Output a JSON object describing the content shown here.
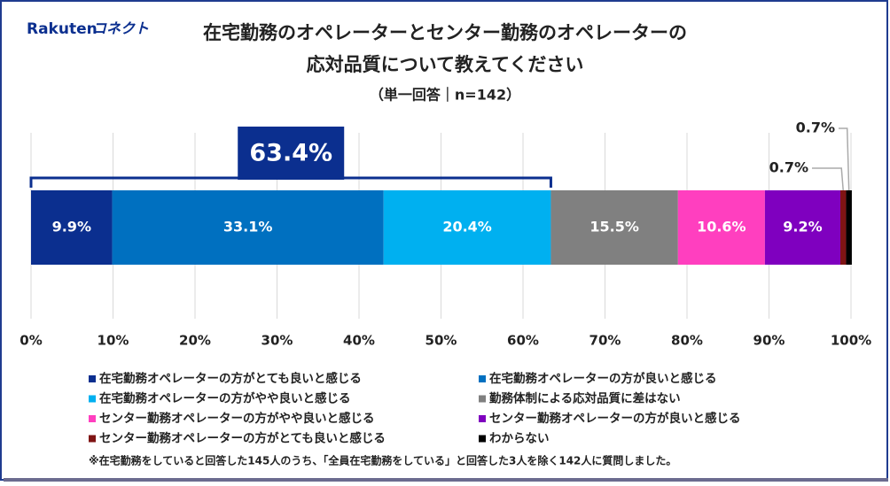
{
  "logo": {
    "brand": "Rakuten",
    "product": "コネクト"
  },
  "chart_data": {
    "type": "bar",
    "orientation": "horizontal",
    "stacked": true,
    "title": [
      "在宅勤務のオペレーターとセンター勤務のオペレーターの",
      "応対品質について教えてください"
    ],
    "subtitle": "（単一回答｜n=142）",
    "xlim": [
      0,
      100
    ],
    "xticks": [
      {
        "value": 0,
        "label": "0%"
      },
      {
        "value": 10,
        "label": "10%"
      },
      {
        "value": 20,
        "label": "20%"
      },
      {
        "value": 30,
        "label": "30%"
      },
      {
        "value": 40,
        "label": "40%"
      },
      {
        "value": 50,
        "label": "50%"
      },
      {
        "value": 60,
        "label": "60%"
      },
      {
        "value": 70,
        "label": "70%"
      },
      {
        "value": 80,
        "label": "80%"
      },
      {
        "value": 90,
        "label": "90%"
      },
      {
        "value": 100,
        "label": "100%"
      }
    ],
    "grid": true,
    "series": [
      {
        "name": "在宅勤務オペレーターの方がとても良いと感じる",
        "color": "#0b2f8f",
        "values": [
          9.9
        ],
        "value_labels": [
          "9.9%"
        ]
      },
      {
        "name": "在宅勤務オペレーターの方が良いと感じる",
        "color": "#0070c0",
        "values": [
          33.1
        ],
        "value_labels": [
          "33.1%"
        ]
      },
      {
        "name": "在宅勤務オペレーターの方がやや良いと感じる",
        "color": "#00b0f0",
        "values": [
          20.4
        ],
        "value_labels": [
          "20.4%"
        ]
      },
      {
        "name": "勤務体制による応対品質に差はない",
        "color": "#808080",
        "values": [
          15.5
        ],
        "value_labels": [
          "15.5%"
        ]
      },
      {
        "name": "センター勤務オペレーターの方がやや良いと感じる",
        "color": "#ff3fbf",
        "values": [
          10.6
        ],
        "value_labels": [
          "10.6%"
        ]
      },
      {
        "name": "センター勤務オペレーターの方が良いと感じる",
        "color": "#7f00bf",
        "values": [
          9.2
        ],
        "value_labels": [
          "9.2%"
        ]
      },
      {
        "name": "センター勤務オペレーターの方がとても良いと感じる",
        "color": "#7f1414",
        "values": [
          0.7
        ],
        "value_labels": [
          "0.7%"
        ]
      },
      {
        "name": "わからない",
        "color": "#000000",
        "values": [
          0.7
        ],
        "value_labels": [
          "0.7%"
        ]
      }
    ],
    "annotation": {
      "value": 63.4,
      "label": "63.4%"
    },
    "footnote": "※在宅勤務をしていると回答した145人のうち、「全員在宅勤務をしている」と回答した3人を除く142人に質問しました。"
  }
}
